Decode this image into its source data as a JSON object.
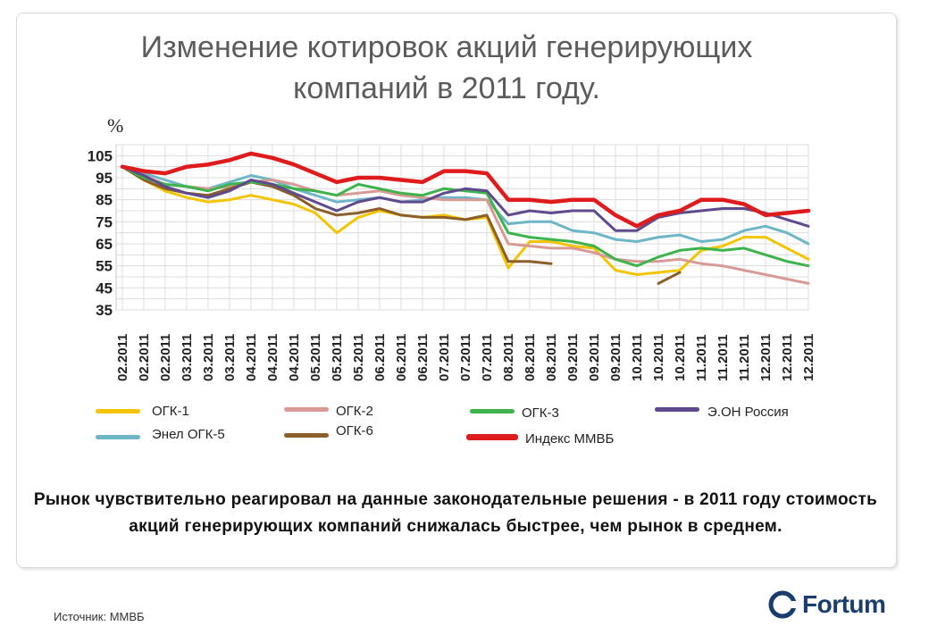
{
  "title_line1": "Изменение котировок акций генерирующих",
  "title_line2": "компаний в 2011 году.",
  "unit_label": "%",
  "note": "Рынок чувствительно реагировал на данные законодательные решения  - в 2011 году стоимость акций генерирующих компаний снижалась быстрее, чем рынок в среднем.",
  "source": "Источник: ММВБ",
  "logo_text": "Fortum",
  "chart_data": {
    "type": "line",
    "title": "Изменение котировок акций генерирующих компаний в 2011 году.",
    "ylabel": "%",
    "ylim": [
      35,
      110
    ],
    "y_ticks": [
      35,
      45,
      55,
      65,
      75,
      85,
      95,
      105
    ],
    "grid": true,
    "categories": [
      "02.2011",
      "02.2011",
      "02.2011",
      "03.2011",
      "03.2011",
      "03.2011",
      "04.2011",
      "04.2011",
      "04.2011",
      "05.2011",
      "05.2011",
      "05.2011",
      "06.2011",
      "06.2011",
      "06.2011",
      "07.2011",
      "07.2011",
      "07.2011",
      "08.2011",
      "08.2011",
      "08.2011",
      "09.2011",
      "09.2011",
      "09.2011",
      "10.2011",
      "10.2011",
      "10.2011",
      "11.2011",
      "11.2011",
      "11.2011",
      "12.2011",
      "12.2011",
      "12.2011"
    ],
    "series": [
      {
        "name": "ОГК-1",
        "color": "#f5c400",
        "values": [
          100,
          94,
          89,
          86,
          84,
          85,
          87,
          85,
          83,
          79,
          70,
          77,
          80,
          78,
          77,
          78,
          76,
          77,
          54,
          66,
          66,
          64,
          63,
          53,
          51,
          52,
          53,
          62,
          64,
          68,
          68,
          63,
          58
        ]
      },
      {
        "name": "Энел ОГК-5",
        "color": "#6db6c8",
        "values": [
          100,
          97,
          94,
          91,
          90,
          93,
          96,
          94,
          90,
          87,
          84,
          85,
          86,
          84,
          85,
          86,
          86,
          85,
          74,
          75,
          75,
          71,
          70,
          67,
          66,
          68,
          69,
          66,
          67,
          71,
          73,
          70,
          65
        ]
      },
      {
        "name": "ОГК-2",
        "color": "#d99a96",
        "values": [
          100,
          96,
          92,
          91,
          90,
          91,
          93,
          94,
          92,
          89,
          87,
          88,
          89,
          87,
          86,
          85,
          85,
          85,
          65,
          64,
          63,
          63,
          61,
          58,
          57,
          57,
          58,
          56,
          55,
          53,
          51,
          49,
          47
        ]
      },
      {
        "name": "ОГК-6",
        "color": "#8b5e2a",
        "values": [
          100,
          94,
          90,
          88,
          87,
          90,
          93,
          91,
          87,
          81,
          78,
          79,
          81,
          78,
          77,
          77,
          76,
          78,
          57,
          57,
          56,
          null,
          null,
          null,
          null,
          47,
          52,
          null,
          null,
          null,
          null,
          null,
          null
        ]
      },
      {
        "name": "ОГК-3",
        "color": "#3cb44b",
        "values": [
          100,
          95,
          92,
          91,
          89,
          92,
          93,
          92,
          90,
          89,
          87,
          92,
          90,
          88,
          87,
          90,
          89,
          88,
          70,
          68,
          67,
          66,
          64,
          58,
          55,
          59,
          62,
          63,
          62,
          63,
          60,
          57,
          55
        ]
      },
      {
        "name": "Э.ОН Россия",
        "color": "#5e4a8c",
        "values": [
          100,
          96,
          91,
          88,
          86,
          89,
          94,
          92,
          88,
          84,
          80,
          84,
          86,
          84,
          84,
          88,
          90,
          89,
          78,
          80,
          79,
          80,
          80,
          71,
          71,
          77,
          79,
          80,
          81,
          81,
          79,
          76,
          73
        ]
      },
      {
        "name": "Индекс ММВБ",
        "color": "#e01b1b",
        "values": [
          100,
          98,
          97,
          100,
          101,
          103,
          106,
          104,
          101,
          97,
          93,
          95,
          95,
          94,
          93,
          98,
          98,
          97,
          85,
          85,
          84,
          85,
          85,
          78,
          73,
          78,
          80,
          85,
          85,
          83,
          78,
          79,
          80
        ]
      }
    ],
    "legend": [
      {
        "label": "ОГК-1",
        "color": "#f5c400"
      },
      {
        "label": "ОГК-2",
        "color": "#d99a96"
      },
      {
        "label": "ОГК-3",
        "color": "#3cb44b"
      },
      {
        "label": "Э.ОН Россия",
        "color": "#5e4a8c"
      },
      {
        "label": "Энел ОГК-5",
        "color": "#6db6c8"
      },
      {
        "label": "ОГК-6",
        "color": "#8b5e2a"
      },
      {
        "label": "Индекс ММВБ",
        "color": "#e01b1b"
      }
    ]
  }
}
